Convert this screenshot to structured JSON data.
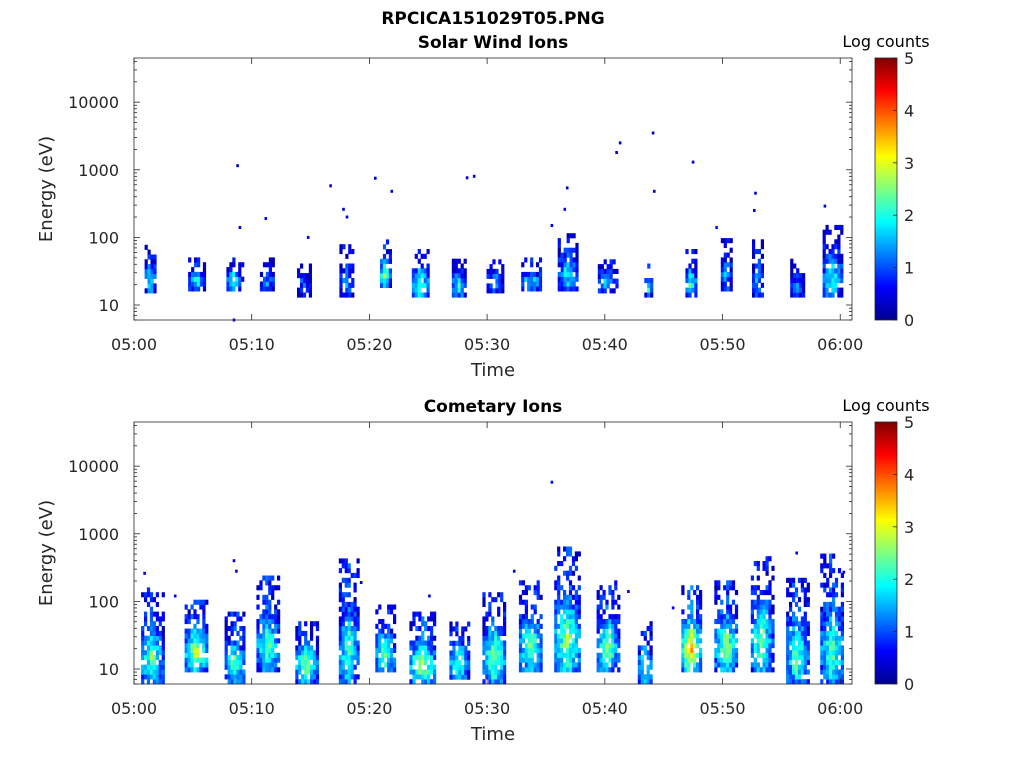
{
  "figure_title": "RPCICA151029T05.PNG",
  "chart_data": [
    {
      "type": "heatmap",
      "title": "Solar Wind Ions",
      "xlabel": "Time",
      "ylabel": "Energy (eV)",
      "x_ticks": [
        "05:00",
        "05:10",
        "05:20",
        "05:30",
        "05:40",
        "05:50",
        "06:00"
      ],
      "y_ticks": [
        "10",
        "100",
        "1000",
        "10000"
      ],
      "yscale": "log",
      "xlim": [
        "05:00",
        "06:01"
      ],
      "ylim": [
        6,
        45000
      ],
      "colorbar": {
        "label": "Log counts",
        "ticks": [
          "0",
          "1",
          "2",
          "3",
          "4",
          "5"
        ],
        "range": [
          0,
          5
        ],
        "colormap": "jet"
      },
      "bursts": [
        {
          "t": 1.4,
          "w": 1.0,
          "e_lo": 15,
          "e_hi": 70,
          "peak": 1.8
        },
        {
          "t": 5.3,
          "w": 1.4,
          "e_lo": 16,
          "e_hi": 45,
          "peak": 2.0
        },
        {
          "t": 8.5,
          "w": 1.3,
          "e_lo": 16,
          "e_hi": 45,
          "peak": 2.2
        },
        {
          "t": 11.3,
          "w": 1.2,
          "e_lo": 16,
          "e_hi": 45,
          "peak": 1.3
        },
        {
          "t": 14.4,
          "w": 1.1,
          "e_lo": 13,
          "e_hi": 40,
          "peak": 1.2
        },
        {
          "t": 18.0,
          "w": 1.1,
          "e_lo": 13,
          "e_hi": 70,
          "peak": 1.4
        },
        {
          "t": 21.3,
          "w": 0.8,
          "e_lo": 18,
          "e_hi": 80,
          "peak": 2.6
        },
        {
          "t": 24.3,
          "w": 1.4,
          "e_lo": 13,
          "e_hi": 60,
          "peak": 2.4
        },
        {
          "t": 27.6,
          "w": 1.2,
          "e_lo": 13,
          "e_hi": 45,
          "peak": 2.0
        },
        {
          "t": 30.6,
          "w": 1.3,
          "e_lo": 15,
          "e_hi": 45,
          "peak": 1.6
        },
        {
          "t": 33.7,
          "w": 1.6,
          "e_lo": 16,
          "e_hi": 45,
          "peak": 1.8
        },
        {
          "t": 36.8,
          "w": 1.6,
          "e_lo": 16,
          "e_hi": 110,
          "peak": 1.8
        },
        {
          "t": 40.2,
          "w": 1.6,
          "e_lo": 15,
          "e_hi": 45,
          "peak": 1.6
        },
        {
          "t": 43.7,
          "w": 0.7,
          "e_lo": 13,
          "e_hi": 35,
          "peak": 2.0
        },
        {
          "t": 47.3,
          "w": 0.9,
          "e_lo": 13,
          "e_hi": 60,
          "peak": 2.2
        },
        {
          "t": 50.3,
          "w": 0.9,
          "e_lo": 16,
          "e_hi": 90,
          "peak": 1.5
        },
        {
          "t": 53.0,
          "w": 1.0,
          "e_lo": 13,
          "e_hi": 80,
          "peak": 1.5
        },
        {
          "t": 56.3,
          "w": 1.1,
          "e_lo": 13,
          "e_hi": 45,
          "peak": 1.2
        },
        {
          "t": 59.3,
          "w": 1.6,
          "e_lo": 13,
          "e_hi": 130,
          "peak": 2.0
        }
      ],
      "points": [
        {
          "t": 8.8,
          "e": 1150,
          "v": 0.4
        },
        {
          "t": 9.0,
          "e": 140,
          "v": 0.6
        },
        {
          "t": 11.2,
          "e": 190,
          "v": 0.6
        },
        {
          "t": 14.8,
          "e": 100,
          "v": 0.5
        },
        {
          "t": 16.7,
          "e": 580,
          "v": 0.4
        },
        {
          "t": 17.8,
          "e": 260,
          "v": 0.4
        },
        {
          "t": 18.1,
          "e": 200,
          "v": 0.5
        },
        {
          "t": 20.5,
          "e": 750,
          "v": 0.4
        },
        {
          "t": 21.9,
          "e": 480,
          "v": 0.4
        },
        {
          "t": 28.3,
          "e": 760,
          "v": 0.4
        },
        {
          "t": 28.9,
          "e": 800,
          "v": 0.4
        },
        {
          "t": 35.5,
          "e": 150,
          "v": 0.5
        },
        {
          "t": 36.8,
          "e": 540,
          "v": 0.4
        },
        {
          "t": 36.6,
          "e": 260,
          "v": 0.6
        },
        {
          "t": 41.0,
          "e": 1800,
          "v": 0.4
        },
        {
          "t": 41.3,
          "e": 2500,
          "v": 0.4
        },
        {
          "t": 44.1,
          "e": 3500,
          "v": 0.4
        },
        {
          "t": 44.2,
          "e": 480,
          "v": 0.4
        },
        {
          "t": 47.5,
          "e": 1300,
          "v": 0.4
        },
        {
          "t": 49.5,
          "e": 140,
          "v": 0.7
        },
        {
          "t": 52.8,
          "e": 450,
          "v": 0.4
        },
        {
          "t": 52.7,
          "e": 250,
          "v": 0.5
        },
        {
          "t": 58.7,
          "e": 290,
          "v": 0.5
        },
        {
          "t": 8.5,
          "e": 6,
          "v": 0.5
        }
      ]
    },
    {
      "type": "heatmap",
      "title": "Cometary Ions",
      "xlabel": "Time",
      "ylabel": "Energy (eV)",
      "x_ticks": [
        "05:00",
        "05:10",
        "05:20",
        "05:30",
        "05:40",
        "05:50",
        "06:00"
      ],
      "y_ticks": [
        "10",
        "100",
        "1000",
        "10000"
      ],
      "yscale": "log",
      "xlim": [
        "05:00",
        "06:01"
      ],
      "ylim": [
        6,
        45000
      ],
      "colorbar": {
        "label": "Log counts",
        "ticks": [
          "0",
          "1",
          "2",
          "3",
          "4",
          "5"
        ],
        "range": [
          0,
          5
        ],
        "colormap": "jet"
      },
      "bursts": [
        {
          "t": 1.5,
          "w": 1.8,
          "e_lo": 6,
          "e_hi": 160,
          "peak": 2.4
        },
        {
          "t": 5.3,
          "w": 2.0,
          "e_lo": 9,
          "e_hi": 100,
          "peak": 2.8
        },
        {
          "t": 8.5,
          "w": 1.6,
          "e_lo": 6,
          "e_hi": 60,
          "peak": 2.4
        },
        {
          "t": 11.3,
          "w": 1.8,
          "e_lo": 9,
          "e_hi": 240,
          "peak": 2.4
        },
        {
          "t": 14.6,
          "w": 1.8,
          "e_lo": 6,
          "e_hi": 50,
          "peak": 2.6
        },
        {
          "t": 18.2,
          "w": 1.6,
          "e_lo": 6,
          "e_hi": 380,
          "peak": 2.3
        },
        {
          "t": 21.3,
          "w": 1.6,
          "e_lo": 9,
          "e_hi": 80,
          "peak": 2.4
        },
        {
          "t": 24.5,
          "w": 2.2,
          "e_lo": 6,
          "e_hi": 60,
          "peak": 2.8
        },
        {
          "t": 27.6,
          "w": 1.6,
          "e_lo": 7,
          "e_hi": 50,
          "peak": 2.4
        },
        {
          "t": 30.6,
          "w": 2.0,
          "e_lo": 6,
          "e_hi": 150,
          "peak": 2.5
        },
        {
          "t": 33.7,
          "w": 2.0,
          "e_lo": 9,
          "e_hi": 200,
          "peak": 2.4
        },
        {
          "t": 36.8,
          "w": 2.2,
          "e_lo": 9,
          "e_hi": 550,
          "peak": 2.6
        },
        {
          "t": 40.2,
          "w": 1.8,
          "e_lo": 9,
          "e_hi": 180,
          "peak": 2.5
        },
        {
          "t": 43.4,
          "w": 1.2,
          "e_lo": 6,
          "e_hi": 45,
          "peak": 2.2
        },
        {
          "t": 47.3,
          "w": 1.6,
          "e_lo": 9,
          "e_hi": 150,
          "peak": 3.5
        },
        {
          "t": 50.3,
          "w": 2.0,
          "e_lo": 9,
          "e_hi": 200,
          "peak": 2.6
        },
        {
          "t": 53.3,
          "w": 1.8,
          "e_lo": 9,
          "e_hi": 450,
          "peak": 2.5
        },
        {
          "t": 56.3,
          "w": 1.8,
          "e_lo": 6,
          "e_hi": 220,
          "peak": 2.4
        },
        {
          "t": 59.3,
          "w": 2.0,
          "e_lo": 6,
          "e_hi": 450,
          "peak": 2.3
        }
      ],
      "points": [
        {
          "t": 0.9,
          "e": 260,
          "v": 0.4
        },
        {
          "t": 8.5,
          "e": 400,
          "v": 0.4
        },
        {
          "t": 8.7,
          "e": 280,
          "v": 0.4
        },
        {
          "t": 3.5,
          "e": 120,
          "v": 0.5
        },
        {
          "t": 19.3,
          "e": 190,
          "v": 0.4
        },
        {
          "t": 25.1,
          "e": 120,
          "v": 0.5
        },
        {
          "t": 32.3,
          "e": 280,
          "v": 0.4
        },
        {
          "t": 35.5,
          "e": 5800,
          "v": 0.5
        },
        {
          "t": 42.0,
          "e": 140,
          "v": 0.5
        },
        {
          "t": 45.8,
          "e": 80,
          "v": 0.6
        },
        {
          "t": 56.3,
          "e": 520,
          "v": 0.5
        },
        {
          "t": 60.3,
          "e": 270,
          "v": 0.4
        }
      ]
    }
  ]
}
